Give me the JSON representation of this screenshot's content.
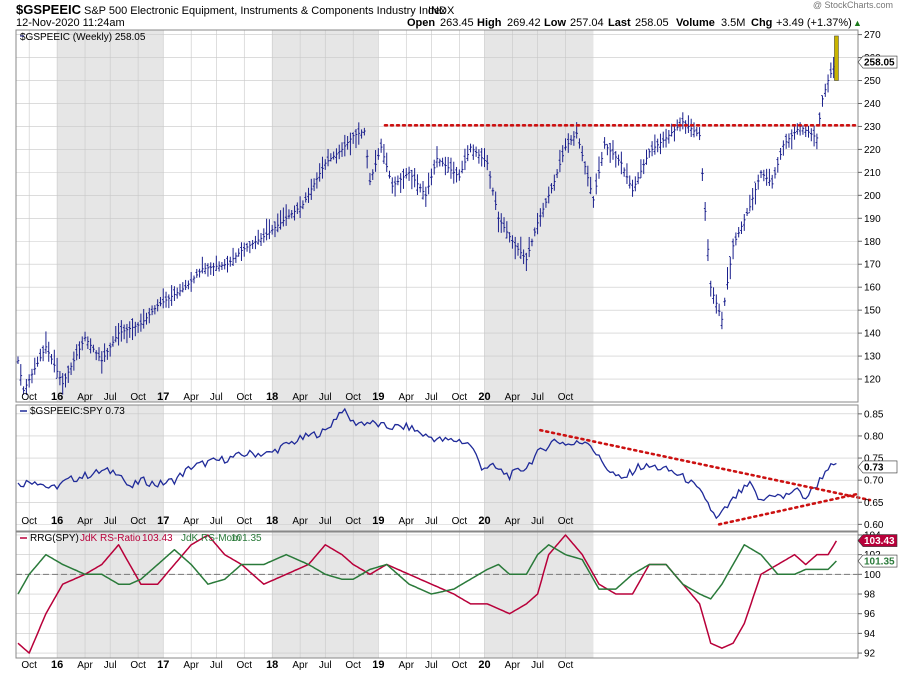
{
  "header": {
    "symbol": "$GSPEEIC",
    "description": "S&P 500 Electronic Equipment, Instruments & Components Industry Index",
    "exchange": "INDX",
    "datetime": "12-Nov-2020 11:24am",
    "watermark": "@ StockCharts.com",
    "open_label": "Open",
    "open": "263.45",
    "high_label": "High",
    "high": "269.42",
    "low_label": "Low",
    "low": "257.04",
    "last_label": "Last",
    "last": "258.05",
    "volume_label": "Volume",
    "volume": "3.5M",
    "chg_label": "Chg",
    "chg": "+3.49 (+1.37%)",
    "chg_arrow": "▲"
  },
  "colors": {
    "price": "#1a1f8c",
    "resistance": "#cc1111",
    "last_bar": "#c9b400",
    "ratio_line": "#1f2a99",
    "rs_ratio": "#b8003a",
    "rs_mom": "#2a7a3a",
    "shade": "#e6e6e6",
    "grid": "#c8c8c8"
  },
  "time_axis": [
    "Oct",
    "16",
    "Apr",
    "Jul",
    "Oct",
    "17",
    "Apr",
    "Jul",
    "Oct",
    "18",
    "Apr",
    "Jul",
    "Oct",
    "19",
    "Apr",
    "Jul",
    "Oct",
    "20",
    "Apr",
    "Jul",
    "Oct"
  ],
  "chart_data": [
    {
      "type": "ohlc",
      "panel": "price",
      "legend": "$GSPEEIC (Weekly) 258.05",
      "last_value_label": "258.05",
      "ylim": [
        110,
        272
      ],
      "yticks": [
        120,
        130,
        140,
        150,
        160,
        170,
        180,
        190,
        200,
        210,
        220,
        230,
        240,
        250,
        260,
        270
      ],
      "resistance_level": 230.5,
      "anchors": [
        [
          0,
          128
        ],
        [
          2,
          115
        ],
        [
          10,
          134
        ],
        [
          16,
          118
        ],
        [
          24,
          138
        ],
        [
          30,
          128
        ],
        [
          36,
          140
        ],
        [
          44,
          144
        ],
        [
          50,
          152
        ],
        [
          60,
          160
        ],
        [
          66,
          168
        ],
        [
          75,
          170
        ],
        [
          80,
          176
        ],
        [
          88,
          182
        ],
        [
          96,
          190
        ],
        [
          102,
          196
        ],
        [
          110,
          214
        ],
        [
          116,
          220
        ],
        [
          120,
          226
        ],
        [
          124,
          228
        ],
        [
          126,
          206
        ],
        [
          130,
          221
        ],
        [
          134,
          204
        ],
        [
          140,
          210
        ],
        [
          146,
          200
        ],
        [
          150,
          216
        ],
        [
          158,
          208
        ],
        [
          162,
          221
        ],
        [
          168,
          214
        ],
        [
          172,
          190
        ],
        [
          178,
          178
        ],
        [
          182,
          172
        ],
        [
          186,
          188
        ],
        [
          192,
          206
        ],
        [
          196,
          221
        ],
        [
          200,
          227
        ],
        [
          206,
          198
        ],
        [
          210,
          222
        ],
        [
          216,
          214
        ],
        [
          220,
          202
        ],
        [
          226,
          219
        ],
        [
          232,
          225
        ],
        [
          238,
          232
        ],
        [
          244,
          226
        ],
        [
          248,
          160
        ],
        [
          252,
          146
        ],
        [
          256,
          178
        ],
        [
          262,
          195
        ],
        [
          266,
          210
        ],
        [
          270,
          205
        ],
        [
          274,
          222
        ],
        [
          280,
          230
        ],
        [
          286,
          225
        ],
        [
          288,
          242
        ],
        [
          290,
          250
        ],
        [
          292,
          256
        ],
        [
          293,
          262
        ]
      ]
    },
    {
      "type": "line",
      "panel": "ratio",
      "legend": "$GSPEEIC:SPY 0.73",
      "last_value_label": "0.73",
      "ylim": [
        0.585,
        0.87
      ],
      "yticks": [
        0.6,
        0.65,
        0.7,
        0.75,
        0.8,
        0.85
      ],
      "anchors": [
        [
          0,
          0.69
        ],
        [
          6,
          0.7
        ],
        [
          12,
          0.68
        ],
        [
          18,
          0.7
        ],
        [
          24,
          0.71
        ],
        [
          30,
          0.72
        ],
        [
          36,
          0.72
        ],
        [
          40,
          0.68
        ],
        [
          44,
          0.7
        ],
        [
          50,
          0.69
        ],
        [
          56,
          0.7
        ],
        [
          62,
          0.73
        ],
        [
          68,
          0.74
        ],
        [
          76,
          0.75
        ],
        [
          82,
          0.76
        ],
        [
          90,
          0.76
        ],
        [
          96,
          0.78
        ],
        [
          104,
          0.8
        ],
        [
          110,
          0.81
        ],
        [
          116,
          0.86
        ],
        [
          120,
          0.83
        ],
        [
          126,
          0.83
        ],
        [
          132,
          0.82
        ],
        [
          140,
          0.82
        ],
        [
          146,
          0.8
        ],
        [
          152,
          0.79
        ],
        [
          158,
          0.79
        ],
        [
          162,
          0.78
        ],
        [
          166,
          0.73
        ],
        [
          170,
          0.73
        ],
        [
          176,
          0.71
        ],
        [
          182,
          0.73
        ],
        [
          186,
          0.76
        ],
        [
          192,
          0.79
        ],
        [
          198,
          0.78
        ],
        [
          204,
          0.79
        ],
        [
          208,
          0.75
        ],
        [
          212,
          0.72
        ],
        [
          216,
          0.7
        ],
        [
          222,
          0.73
        ],
        [
          228,
          0.73
        ],
        [
          234,
          0.72
        ],
        [
          240,
          0.7
        ],
        [
          246,
          0.66
        ],
        [
          250,
          0.61
        ],
        [
          254,
          0.64
        ],
        [
          258,
          0.67
        ],
        [
          262,
          0.69
        ],
        [
          266,
          0.65
        ],
        [
          270,
          0.67
        ],
        [
          274,
          0.66
        ],
        [
          278,
          0.68
        ],
        [
          282,
          0.66
        ],
        [
          286,
          0.69
        ],
        [
          290,
          0.73
        ],
        [
          293,
          0.73
        ]
      ],
      "trendlines": [
        [
          [
            187,
            0.813
          ],
          [
            305,
            0.655
          ]
        ],
        [
          [
            251,
            0.6
          ],
          [
            300,
            0.668
          ]
        ]
      ]
    },
    {
      "type": "line",
      "panel": "rrg",
      "legend_prefix": "RRG(SPY)",
      "legend_series": [
        {
          "name": "JdK RS-Ratio",
          "value": "103.43"
        },
        {
          "name": "JdK RS-Mom",
          "value": "101.35"
        }
      ],
      "ylim": [
        91.5,
        104.3
      ],
      "yticks": [
        92,
        94,
        96,
        98,
        100,
        102,
        104
      ],
      "reference": 100,
      "series": [
        {
          "name": "JdK RS-Ratio",
          "last_value_label": "103.43",
          "anchors": [
            [
              0,
              93
            ],
            [
              4,
              92
            ],
            [
              10,
              96
            ],
            [
              16,
              99
            ],
            [
              24,
              100
            ],
            [
              30,
              101
            ],
            [
              36,
              103
            ],
            [
              40,
              101
            ],
            [
              44,
              99
            ],
            [
              50,
              99
            ],
            [
              56,
              101
            ],
            [
              62,
              103
            ],
            [
              68,
              104
            ],
            [
              74,
              102
            ],
            [
              80,
              101
            ],
            [
              88,
              99
            ],
            [
              96,
              100
            ],
            [
              104,
              101
            ],
            [
              110,
              103
            ],
            [
              116,
              102
            ],
            [
              120,
              101
            ],
            [
              126,
              100
            ],
            [
              132,
              101
            ],
            [
              140,
              100
            ],
            [
              148,
              99
            ],
            [
              156,
              98
            ],
            [
              162,
              97
            ],
            [
              168,
              97
            ],
            [
              172,
              96.5
            ],
            [
              176,
              96
            ],
            [
              182,
              97
            ],
            [
              186,
              98
            ],
            [
              190,
              102
            ],
            [
              196,
              104
            ],
            [
              202,
              102
            ],
            [
              208,
              99
            ],
            [
              214,
              98
            ],
            [
              220,
              98
            ],
            [
              226,
              101
            ],
            [
              232,
              101
            ],
            [
              238,
              99
            ],
            [
              244,
              97
            ],
            [
              248,
              93
            ],
            [
              252,
              92.5
            ],
            [
              256,
              93
            ],
            [
              260,
              95
            ],
            [
              266,
              100
            ],
            [
              272,
              101
            ],
            [
              278,
              102
            ],
            [
              282,
              101
            ],
            [
              286,
              102
            ],
            [
              290,
              102
            ],
            [
              293,
              103.4
            ]
          ]
        },
        {
          "name": "JdK RS-Mom",
          "last_value_label": "101.35",
          "anchors": [
            [
              0,
              98
            ],
            [
              4,
              100
            ],
            [
              10,
              102
            ],
            [
              16,
              101
            ],
            [
              24,
              100
            ],
            [
              30,
              100
            ],
            [
              36,
              99
            ],
            [
              40,
              99
            ],
            [
              44,
              99.5
            ],
            [
              50,
              101
            ],
            [
              56,
              102.5
            ],
            [
              62,
              101
            ],
            [
              68,
              99
            ],
            [
              74,
              99.5
            ],
            [
              80,
              101
            ],
            [
              88,
              101
            ],
            [
              96,
              102
            ],
            [
              104,
              101
            ],
            [
              110,
              100
            ],
            [
              116,
              99.5
            ],
            [
              120,
              99.5
            ],
            [
              126,
              100.5
            ],
            [
              132,
              101
            ],
            [
              140,
              99
            ],
            [
              148,
              98
            ],
            [
              156,
              98.5
            ],
            [
              162,
              99.5
            ],
            [
              168,
              100.5
            ],
            [
              172,
              101
            ],
            [
              176,
              100
            ],
            [
              182,
              100
            ],
            [
              186,
              102
            ],
            [
              190,
              103
            ],
            [
              196,
              102
            ],
            [
              202,
              101.5
            ],
            [
              208,
              98.5
            ],
            [
              214,
              98.5
            ],
            [
              220,
              100
            ],
            [
              226,
              101
            ],
            [
              232,
              101
            ],
            [
              238,
              99
            ],
            [
              244,
              98
            ],
            [
              248,
              97.5
            ],
            [
              252,
              99
            ],
            [
              256,
              101
            ],
            [
              260,
              103
            ],
            [
              266,
              102
            ],
            [
              272,
              100
            ],
            [
              278,
              100
            ],
            [
              282,
              100.5
            ],
            [
              286,
              100.5
            ],
            [
              290,
              100.5
            ],
            [
              293,
              101.35
            ]
          ]
        }
      ]
    }
  ]
}
